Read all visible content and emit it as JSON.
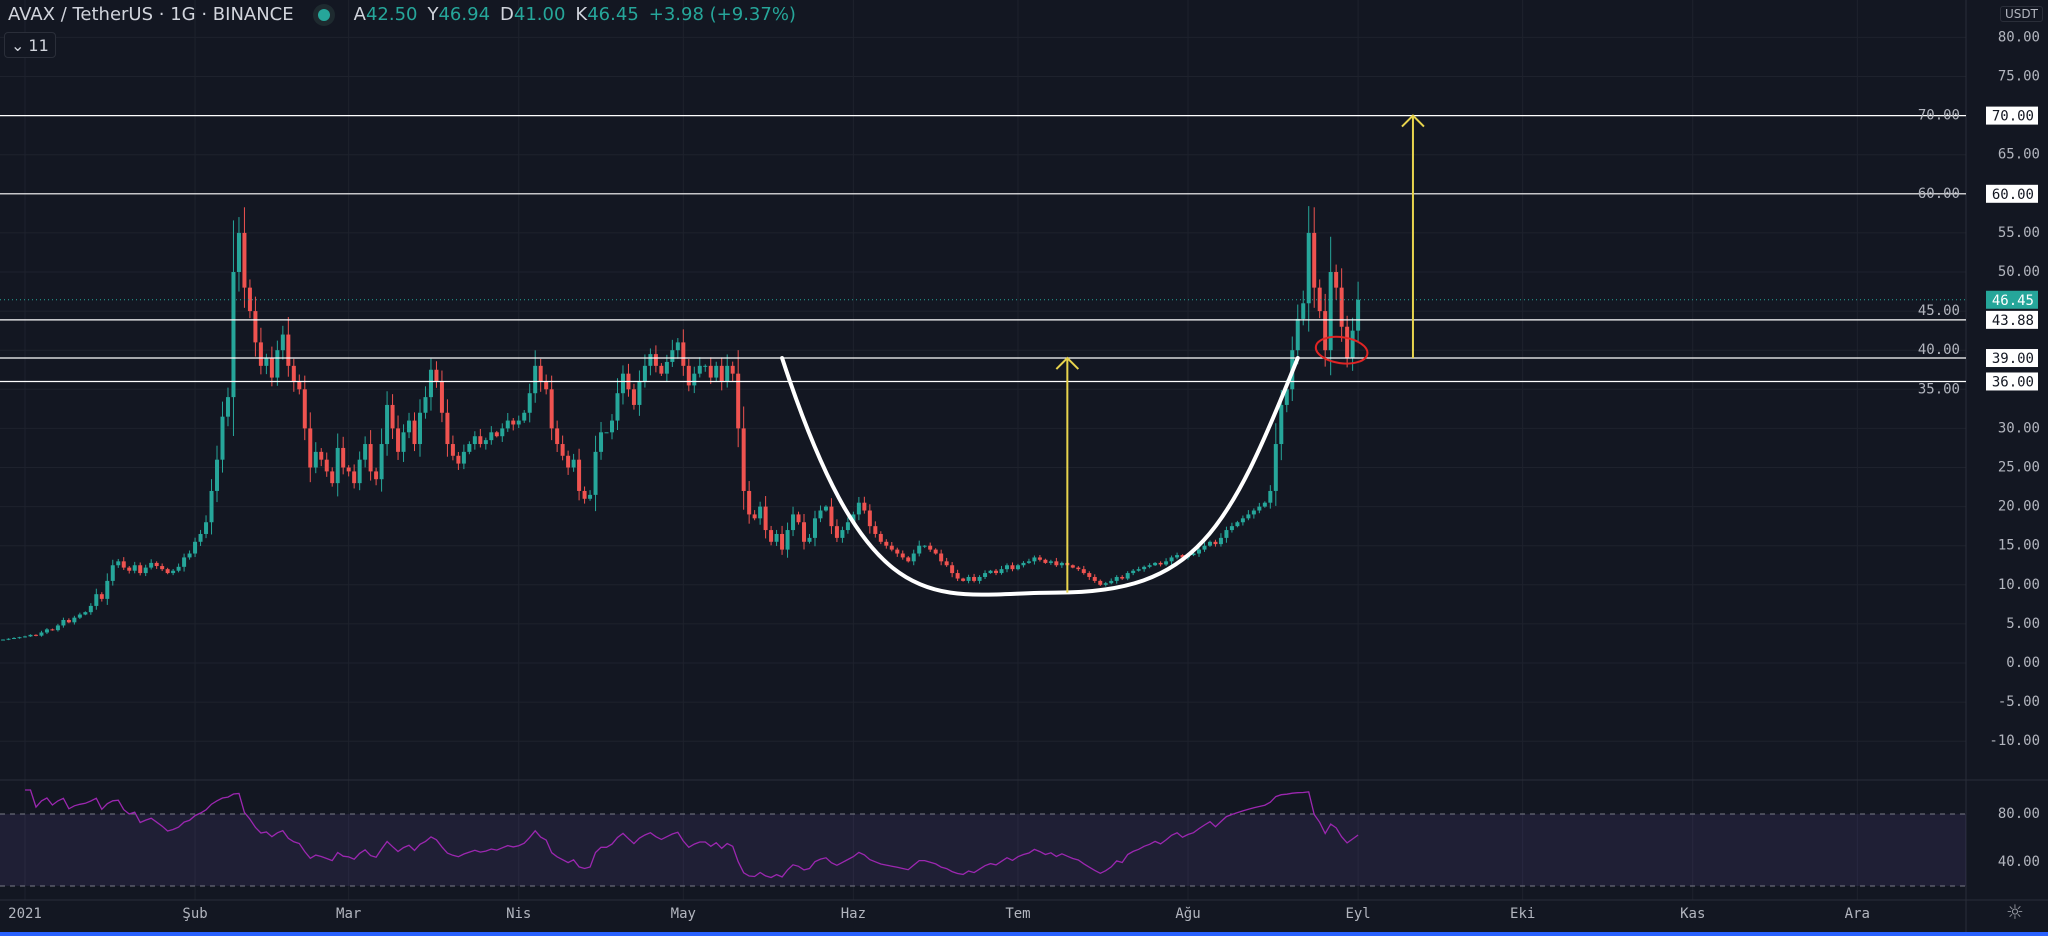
{
  "header": {
    "symbol": "AVAX / TetherUS",
    "interval": "1G",
    "exchange": "BINANCE",
    "ohlc": {
      "o_label": "A",
      "o": "42.50",
      "h_label": "Y",
      "h": "46.94",
      "l_label": "D",
      "l": "41.00",
      "c_label": "K",
      "c": "46.45",
      "change": "+3.98 (+9.37%)"
    },
    "indicators_count": "11",
    "currency": "USDT"
  },
  "colors": {
    "background": "#131722",
    "up": "#26a69a",
    "down": "#ef5350",
    "level_line": "#ffffff",
    "arrow": "#e8d44d",
    "cup": "#ffffff",
    "circle": "#e02424",
    "rsi": "#9c27b0",
    "rsi_band": "#7e57c2",
    "last_price": "#26a69a"
  },
  "chart_data": {
    "type": "candlestick",
    "start_date": "2020-12-28",
    "closes": [
      3.0,
      3.1,
      3.2,
      3.3,
      3.4,
      3.6,
      3.5,
      3.9,
      4.3,
      4.2,
      4.8,
      5.5,
      5.2,
      5.8,
      6.2,
      6.5,
      7.3,
      8.8,
      8.2,
      10.5,
      12.5,
      13.0,
      12.2,
      11.8,
      12.5,
      11.5,
      12.2,
      12.8,
      12.4,
      12.0,
      11.5,
      11.8,
      12.3,
      13.5,
      14.0,
      15.5,
      16.5,
      18.0,
      22.0,
      26.0,
      31.5,
      34.0,
      50.0,
      55.0,
      48.0,
      45.0,
      41.0,
      38.0,
      39.0,
      36.5,
      40.0,
      42.0,
      38.0,
      36.0,
      35.0,
      30.0,
      25.0,
      27.0,
      26.0,
      24.5,
      23.0,
      27.5,
      25.0,
      24.5,
      23.0,
      26.0,
      28.0,
      24.5,
      23.5,
      28.0,
      33.0,
      30.0,
      27.0,
      29.5,
      31.0,
      28.0,
      32.0,
      34.0,
      37.5,
      36.0,
      32.0,
      28.0,
      26.5,
      25.5,
      27.0,
      28.0,
      29.0,
      28.0,
      28.5,
      29.5,
      29.0,
      30.0,
      31.0,
      30.5,
      31.0,
      32.0,
      34.5,
      38.0,
      36.0,
      35.0,
      30.0,
      28.0,
      26.5,
      25.0,
      26.0,
      22.0,
      21.0,
      21.5,
      27.0,
      29.5,
      29.5,
      31.0,
      34.5,
      37.0,
      35.0,
      33.0,
      36.0,
      38.0,
      39.5,
      38.0,
      37.0,
      38.5,
      40.0,
      41.0,
      38.0,
      35.5,
      37.0,
      38.0,
      38.0,
      36.5,
      38.0,
      36.0,
      38.0,
      37.0,
      30.0,
      22.0,
      19.0,
      18.5,
      20.0,
      17.0,
      15.5,
      16.5,
      14.5,
      17.0,
      19.0,
      18.0,
      15.5,
      16.0,
      18.5,
      19.5,
      20.0,
      17.5,
      16.0,
      17.0,
      18.0,
      19.0,
      20.5,
      19.5,
      17.5,
      16.5,
      15.5,
      15.0,
      14.5,
      14.0,
      13.5,
      13.0,
      14.0,
      15.0,
      15.0,
      14.5,
      14.0,
      13.0,
      12.5,
      11.5,
      10.8,
      10.5,
      11.0,
      10.5,
      11.0,
      11.5,
      11.8,
      11.5,
      12.0,
      12.5,
      12.0,
      12.5,
      12.8,
      13.0,
      13.5,
      13.2,
      12.8,
      13.0,
      12.5,
      12.8,
      12.5,
      12.2,
      12.0,
      11.5,
      11.0,
      10.5,
      10.0,
      10.2,
      10.5,
      11.0,
      10.8,
      11.5,
      11.8,
      12.0,
      12.3,
      12.5,
      12.8,
      12.6,
      13.0,
      13.5,
      13.8,
      13.5,
      13.8,
      14.0,
      14.5,
      15.0,
      15.5,
      15.2,
      16.0,
      17.0,
      17.5,
      18.0,
      18.5,
      19.0,
      19.5,
      20.0,
      20.5,
      22.0,
      28.0,
      33.0,
      35.0,
      40.0,
      44.0,
      46.0,
      55.0,
      48.0,
      45.0,
      40.0,
      50.0,
      48.0,
      43.0,
      39.0,
      42.5,
      46.45
    ],
    "y_ticks": [
      80,
      75,
      70,
      65,
      60,
      55,
      50,
      45,
      40,
      35,
      30,
      25,
      20,
      15,
      10,
      5,
      0,
      -5,
      -10
    ],
    "ylim": [
      -12,
      84
    ],
    "x_ticks": [
      {
        "label": "2021",
        "date": "2021-01-01"
      },
      {
        "label": "Şub",
        "date": "2021-02-01"
      },
      {
        "label": "Mar",
        "date": "2021-03-01"
      },
      {
        "label": "Nis",
        "date": "2021-04-01"
      },
      {
        "label": "May",
        "date": "2021-05-01"
      },
      {
        "label": "Haz",
        "date": "2021-06-01"
      },
      {
        "label": "Tem",
        "date": "2021-07-01"
      },
      {
        "label": "Ağu",
        "date": "2021-08-01"
      },
      {
        "label": "Eyl",
        "date": "2021-09-01"
      },
      {
        "label": "Eki",
        "date": "2021-10-01"
      },
      {
        "label": "Kas",
        "date": "2021-11-01"
      },
      {
        "label": "Ara",
        "date": "2021-12-01"
      }
    ],
    "levels": [
      {
        "value": 70,
        "label": "70.00"
      },
      {
        "value": 60,
        "label": "60.00"
      },
      {
        "value": 43.88,
        "label": "43.88"
      },
      {
        "value": 39,
        "label": "39.00"
      },
      {
        "value": 36,
        "label": "36.00"
      }
    ],
    "last_price": {
      "value": 46.45,
      "label": "46.45"
    },
    "annotations": {
      "cup": {
        "start": {
          "date": "2021-05-19",
          "value": 39
        },
        "bottom": {
          "date": "2021-07-08",
          "value": 9
        },
        "end": {
          "date": "2021-08-21",
          "value": 39
        }
      },
      "arrows": [
        {
          "date": "2021-07-10",
          "from": 9,
          "to": 39
        },
        {
          "date": "2021-09-11",
          "from": 39,
          "to": 70
        }
      ],
      "circle": {
        "date": "2021-08-29",
        "value": 40
      }
    },
    "rsi": {
      "period": 14,
      "y_ticks": [
        {
          "value": 80,
          "label": "80.00"
        },
        {
          "value": 40,
          "label": "40.00"
        }
      ],
      "band": [
        20,
        80
      ]
    }
  }
}
